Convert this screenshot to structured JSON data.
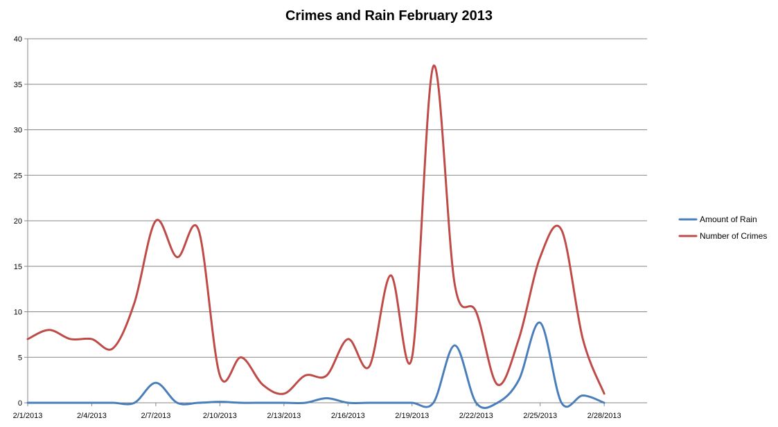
{
  "chart_data": {
    "type": "line",
    "title": "Crimes and Rain February 2013",
    "xlabel": "",
    "ylabel": "",
    "ylim": [
      0,
      40
    ],
    "y_ticks": [
      0,
      5,
      10,
      15,
      20,
      25,
      30,
      35,
      40
    ],
    "grid": true,
    "legend_position": "right",
    "x": [
      "2/1/2013",
      "2/2/2013",
      "2/3/2013",
      "2/4/2013",
      "2/5/2013",
      "2/6/2013",
      "2/7/2013",
      "2/8/2013",
      "2/9/2013",
      "2/10/2013",
      "2/11/2013",
      "2/12/2013",
      "2/13/2013",
      "2/14/2013",
      "2/15/2013",
      "2/16/2013",
      "2/17/2013",
      "2/18/2013",
      "2/19/2013",
      "2/20/2013",
      "2/21/2013",
      "2/22/2013",
      "2/23/2013",
      "2/24/2013",
      "2/25/2013",
      "2/26/2013",
      "2/27/2013",
      "2/28/2013"
    ],
    "x_tick_labels": [
      "2/1/2013",
      "2/4/2013",
      "2/7/2013",
      "2/10/2013",
      "2/13/2013",
      "2/16/2013",
      "2/19/2013",
      "2/22/2013",
      "2/25/2013",
      "2/28/2013"
    ],
    "series": [
      {
        "name": "Amount of Rain",
        "color": "#4a7ebb",
        "values": [
          0,
          0,
          0,
          0,
          0,
          0,
          2.2,
          0,
          0,
          0.1,
          0,
          0,
          0,
          0,
          0.5,
          0,
          0,
          0,
          0,
          0,
          6.3,
          0,
          0,
          2.5,
          8.8,
          0,
          0.8,
          0
        ]
      },
      {
        "name": "Number of Crimes",
        "color": "#be4b48",
        "values": [
          7,
          8,
          7,
          7,
          6,
          11,
          20,
          16,
          19,
          3,
          5,
          2,
          1,
          3,
          3,
          7,
          4,
          14,
          5,
          37,
          13,
          10,
          2,
          7,
          16,
          19,
          7,
          1
        ]
      }
    ]
  }
}
